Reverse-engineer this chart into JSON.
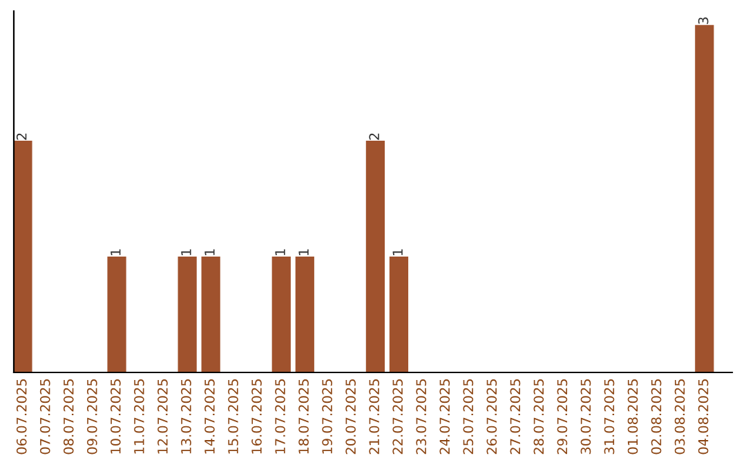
{
  "chart_data": {
    "type": "bar",
    "data_labels": true,
    "color": "#a0522d",
    "categories": [
      "06.07.2025",
      "07.07.2025",
      "08.07.2025",
      "09.07.2025",
      "10.07.2025",
      "11.07.2025",
      "12.07.2025",
      "13.07.2025",
      "14.07.2025",
      "15.07.2025",
      "16.07.2025",
      "17.07.2025",
      "18.07.2025",
      "19.07.2025",
      "20.07.2025",
      "21.07.2025",
      "22.07.2025",
      "23.07.2025",
      "24.07.2025",
      "25.07.2025",
      "26.07.2025",
      "27.07.2025",
      "28.07.2025",
      "29.07.2025",
      "30.07.2025",
      "31.07.2025",
      "01.08.2025",
      "02.08.2025",
      "03.08.2025",
      "04.08.2025"
    ],
    "values": [
      2,
      0,
      0,
      0,
      1,
      0,
      0,
      1,
      1,
      0,
      0,
      1,
      1,
      0,
      0,
      2,
      1,
      0,
      0,
      0,
      0,
      0,
      0,
      0,
      0,
      0,
      0,
      0,
      0,
      3
    ],
    "value_labels": [
      "2",
      null,
      null,
      null,
      "1",
      null,
      null,
      "1",
      "1",
      null,
      null,
      "1",
      "1",
      null,
      null,
      "2",
      "1",
      null,
      null,
      null,
      null,
      null,
      null,
      null,
      null,
      null,
      null,
      null,
      null,
      "3"
    ],
    "grid": false,
    "legend": false
  }
}
